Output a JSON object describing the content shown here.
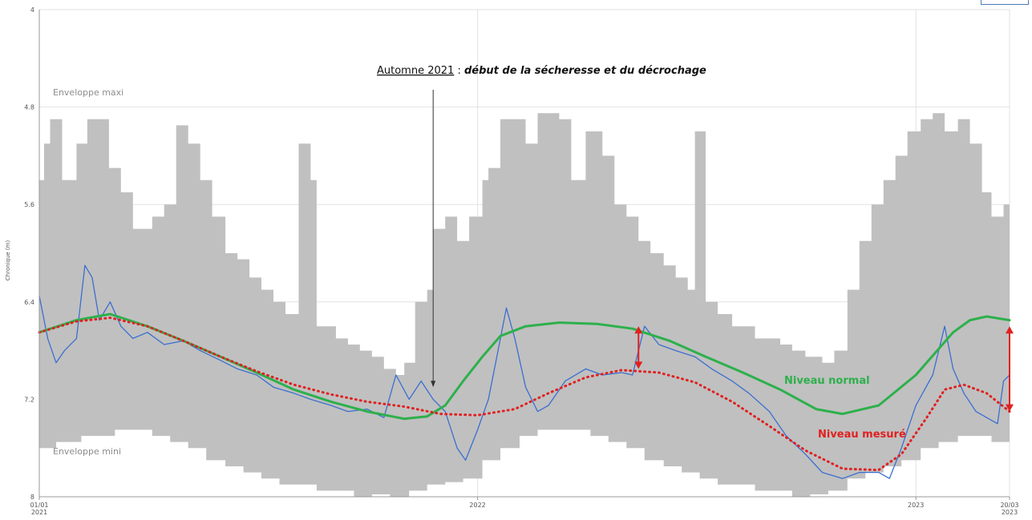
{
  "chart_data": {
    "type": "area",
    "ylabel": "Chronique (m)",
    "ylim": [
      8,
      4
    ],
    "y_inverted": true,
    "yticks": [
      4,
      4.8,
      5.6,
      6.4,
      7.2,
      8
    ],
    "ytick_labels": [
      "4",
      "4.8",
      "5.6",
      "6.4",
      "7.2",
      "8"
    ],
    "xlim": [
      "2021-01-01",
      "2023-03-20"
    ],
    "xtick_labels": [
      {
        "date": "2021-01-01",
        "lines": [
          "01/01",
          "2021"
        ]
      },
      {
        "date": "2022-01-01",
        "lines": [
          "2022"
        ]
      },
      {
        "date": "2023-01-01",
        "lines": [
          "2023"
        ]
      },
      {
        "date": "2023-03-20",
        "lines": [
          "20/03",
          "2023"
        ]
      }
    ],
    "grid": true,
    "envelope": {
      "color": "#c0c0c0",
      "max_label": "Enveloppe maxi",
      "min_label": "Enveloppe mini",
      "upper": [
        [
          "2021-01-01",
          5.4
        ],
        [
          "2021-01-05",
          5.1
        ],
        [
          "2021-01-10",
          4.9
        ],
        [
          "2021-01-15",
          4.9
        ],
        [
          "2021-01-20",
          5.4
        ],
        [
          "2021-02-01",
          5.1
        ],
        [
          "2021-02-10",
          4.9
        ],
        [
          "2021-02-20",
          4.9
        ],
        [
          "2021-02-28",
          5.3
        ],
        [
          "2021-03-10",
          5.5
        ],
        [
          "2021-03-20",
          5.8
        ],
        [
          "2021-04-01",
          5.8
        ],
        [
          "2021-04-05",
          5.7
        ],
        [
          "2021-04-15",
          5.6
        ],
        [
          "2021-04-20",
          5.6
        ],
        [
          "2021-04-25",
          4.95
        ],
        [
          "2021-05-05",
          5.1
        ],
        [
          "2021-05-15",
          5.4
        ],
        [
          "2021-05-25",
          5.7
        ],
        [
          "2021-06-05",
          6.0
        ],
        [
          "2021-06-15",
          6.05
        ],
        [
          "2021-06-25",
          6.2
        ],
        [
          "2021-07-05",
          6.3
        ],
        [
          "2021-07-15",
          6.4
        ],
        [
          "2021-07-25",
          6.5
        ],
        [
          "2021-08-01",
          6.5
        ],
        [
          "2021-08-05",
          5.1
        ],
        [
          "2021-08-15",
          5.4
        ],
        [
          "2021-08-20",
          6.6
        ],
        [
          "2021-09-05",
          6.7
        ],
        [
          "2021-09-15",
          6.75
        ],
        [
          "2021-09-25",
          6.8
        ],
        [
          "2021-10-05",
          6.85
        ],
        [
          "2021-10-15",
          6.95
        ],
        [
          "2021-10-25",
          7.0
        ],
        [
          "2021-11-01",
          6.9
        ],
        [
          "2021-11-10",
          6.4
        ],
        [
          "2021-11-20",
          6.3
        ],
        [
          "2021-11-25",
          5.8
        ],
        [
          "2021-12-05",
          5.7
        ],
        [
          "2021-12-15",
          5.9
        ],
        [
          "2021-12-25",
          5.7
        ],
        [
          "2022-01-05",
          5.4
        ],
        [
          "2022-01-10",
          5.3
        ],
        [
          "2022-01-20",
          4.9
        ],
        [
          "2022-01-30",
          4.9
        ],
        [
          "2022-02-10",
          5.1
        ],
        [
          "2022-02-20",
          4.85
        ],
        [
          "2022-03-01",
          4.85
        ],
        [
          "2022-03-10",
          4.9
        ],
        [
          "2022-03-20",
          5.4
        ],
        [
          "2022-04-01",
          5.0
        ],
        [
          "2022-04-15",
          5.2
        ],
        [
          "2022-04-25",
          5.6
        ],
        [
          "2022-05-05",
          5.7
        ],
        [
          "2022-05-15",
          5.9
        ],
        [
          "2022-05-25",
          6.0
        ],
        [
          "2022-06-05",
          6.1
        ],
        [
          "2022-06-15",
          6.2
        ],
        [
          "2022-06-25",
          6.3
        ],
        [
          "2022-07-01",
          5.0
        ],
        [
          "2022-07-10",
          6.4
        ],
        [
          "2022-07-20",
          6.5
        ],
        [
          "2022-08-01",
          6.6
        ],
        [
          "2022-08-10",
          6.6
        ],
        [
          "2022-08-20",
          6.7
        ],
        [
          "2022-08-30",
          6.7
        ],
        [
          "2022-09-10",
          6.75
        ],
        [
          "2022-09-20",
          6.8
        ],
        [
          "2022-10-01",
          6.85
        ],
        [
          "2022-10-15",
          6.9
        ],
        [
          "2022-10-25",
          6.8
        ],
        [
          "2022-11-05",
          6.3
        ],
        [
          "2022-11-15",
          5.9
        ],
        [
          "2022-11-25",
          5.6
        ],
        [
          "2022-12-05",
          5.4
        ],
        [
          "2022-12-15",
          5.2
        ],
        [
          "2022-12-25",
          5.0
        ],
        [
          "2023-01-05",
          4.9
        ],
        [
          "2023-01-15",
          4.85
        ],
        [
          "2023-01-25",
          5.0
        ],
        [
          "2023-02-05",
          4.9
        ],
        [
          "2023-02-15",
          5.1
        ],
        [
          "2023-02-25",
          5.5
        ],
        [
          "2023-03-05",
          5.7
        ],
        [
          "2023-03-15",
          5.6
        ],
        [
          "2023-03-20",
          4.9
        ]
      ],
      "lower": [
        [
          "2021-01-01",
          7.6
        ],
        [
          "2021-01-15",
          7.55
        ],
        [
          "2021-02-05",
          7.5
        ],
        [
          "2021-03-05",
          7.45
        ],
        [
          "2021-04-05",
          7.5
        ],
        [
          "2021-04-20",
          7.55
        ],
        [
          "2021-05-05",
          7.6
        ],
        [
          "2021-05-20",
          7.7
        ],
        [
          "2021-06-05",
          7.75
        ],
        [
          "2021-06-20",
          7.8
        ],
        [
          "2021-07-05",
          7.85
        ],
        [
          "2021-07-20",
          7.9
        ],
        [
          "2021-08-05",
          7.9
        ],
        [
          "2021-08-20",
          7.95
        ],
        [
          "2021-09-05",
          7.95
        ],
        [
          "2021-09-20",
          8.0
        ],
        [
          "2021-10-05",
          7.98
        ],
        [
          "2021-10-20",
          8.0
        ],
        [
          "2021-11-05",
          7.95
        ],
        [
          "2021-11-20",
          7.9
        ],
        [
          "2021-12-05",
          7.88
        ],
        [
          "2021-12-20",
          7.85
        ],
        [
          "2022-01-05",
          7.7
        ],
        [
          "2022-01-20",
          7.6
        ],
        [
          "2022-02-05",
          7.5
        ],
        [
          "2022-02-20",
          7.45
        ],
        [
          "2022-03-05",
          7.45
        ],
        [
          "2022-03-20",
          7.45
        ],
        [
          "2022-04-05",
          7.5
        ],
        [
          "2022-04-20",
          7.55
        ],
        [
          "2022-05-05",
          7.6
        ],
        [
          "2022-05-20",
          7.7
        ],
        [
          "2022-06-05",
          7.75
        ],
        [
          "2022-06-20",
          7.8
        ],
        [
          "2022-07-05",
          7.85
        ],
        [
          "2022-07-20",
          7.9
        ],
        [
          "2022-08-05",
          7.9
        ],
        [
          "2022-08-20",
          7.95
        ],
        [
          "2022-09-05",
          7.95
        ],
        [
          "2022-09-20",
          8.0
        ],
        [
          "2022-10-05",
          7.98
        ],
        [
          "2022-10-20",
          7.95
        ],
        [
          "2022-11-05",
          7.85
        ],
        [
          "2022-11-20",
          7.8
        ],
        [
          "2022-12-05",
          7.75
        ],
        [
          "2022-12-20",
          7.7
        ],
        [
          "2023-01-05",
          7.6
        ],
        [
          "2023-01-20",
          7.55
        ],
        [
          "2023-02-05",
          7.5
        ],
        [
          "2023-02-20",
          7.5
        ],
        [
          "2023-03-05",
          7.55
        ],
        [
          "2023-03-20",
          7.55
        ]
      ]
    },
    "series": [
      {
        "name": "Niveau normal",
        "color": "#2db04b",
        "style": "solid",
        "points": [
          [
            "2021-01-01",
            6.65
          ],
          [
            "2021-02-01",
            6.55
          ],
          [
            "2021-03-01",
            6.5
          ],
          [
            "2021-04-01",
            6.6
          ],
          [
            "2021-05-01",
            6.72
          ],
          [
            "2021-06-01",
            6.85
          ],
          [
            "2021-07-01",
            6.98
          ],
          [
            "2021-08-01",
            7.12
          ],
          [
            "2021-09-01",
            7.22
          ],
          [
            "2021-10-01",
            7.3
          ],
          [
            "2021-11-01",
            7.36
          ],
          [
            "2021-11-20",
            7.34
          ],
          [
            "2021-12-05",
            7.25
          ],
          [
            "2021-12-20",
            7.05
          ],
          [
            "2022-01-05",
            6.85
          ],
          [
            "2022-01-20",
            6.68
          ],
          [
            "2022-02-10",
            6.6
          ],
          [
            "2022-03-10",
            6.57
          ],
          [
            "2022-04-10",
            6.58
          ],
          [
            "2022-05-10",
            6.62
          ],
          [
            "2022-06-10",
            6.72
          ],
          [
            "2022-07-10",
            6.85
          ],
          [
            "2022-08-10",
            6.98
          ],
          [
            "2022-09-10",
            7.12
          ],
          [
            "2022-10-10",
            7.28
          ],
          [
            "2022-11-01",
            7.32
          ],
          [
            "2022-12-01",
            7.25
          ],
          [
            "2023-01-01",
            7.0
          ],
          [
            "2023-02-01",
            6.65
          ],
          [
            "2023-02-15",
            6.55
          ],
          [
            "2023-03-01",
            6.52
          ],
          [
            "2023-03-20",
            6.55
          ]
        ]
      },
      {
        "name": "Niveau mesuré",
        "color": "#e02020",
        "style": "dotted",
        "points": [
          [
            "2021-01-01",
            6.65
          ],
          [
            "2021-02-01",
            6.56
          ],
          [
            "2021-03-01",
            6.53
          ],
          [
            "2021-04-01",
            6.6
          ],
          [
            "2021-05-01",
            6.72
          ],
          [
            "2021-06-01",
            6.85
          ],
          [
            "2021-07-01",
            6.97
          ],
          [
            "2021-08-01",
            7.08
          ],
          [
            "2021-09-01",
            7.16
          ],
          [
            "2021-10-01",
            7.22
          ],
          [
            "2021-11-01",
            7.26
          ],
          [
            "2021-12-01",
            7.32
          ],
          [
            "2022-01-01",
            7.33
          ],
          [
            "2022-02-01",
            7.28
          ],
          [
            "2022-03-01",
            7.15
          ],
          [
            "2022-04-01",
            7.02
          ],
          [
            "2022-05-01",
            6.96
          ],
          [
            "2022-06-01",
            6.98
          ],
          [
            "2022-07-01",
            7.06
          ],
          [
            "2022-08-01",
            7.22
          ],
          [
            "2022-09-01",
            7.42
          ],
          [
            "2022-10-01",
            7.62
          ],
          [
            "2022-11-01",
            7.77
          ],
          [
            "2022-12-01",
            7.78
          ],
          [
            "2022-12-20",
            7.65
          ],
          [
            "2023-01-10",
            7.35
          ],
          [
            "2023-01-25",
            7.12
          ],
          [
            "2023-02-10",
            7.08
          ],
          [
            "2023-03-01",
            7.15
          ],
          [
            "2023-03-20",
            7.3
          ]
        ]
      },
      {
        "name": "",
        "color": "#3a6fd0",
        "style": "solid",
        "points": [
          [
            "2021-01-01",
            6.35
          ],
          [
            "2021-01-08",
            6.7
          ],
          [
            "2021-01-15",
            6.9
          ],
          [
            "2021-01-22",
            6.8
          ],
          [
            "2021-02-01",
            6.7
          ],
          [
            "2021-02-08",
            6.1
          ],
          [
            "2021-02-14",
            6.2
          ],
          [
            "2021-02-20",
            6.55
          ],
          [
            "2021-03-01",
            6.4
          ],
          [
            "2021-03-10",
            6.6
          ],
          [
            "2021-03-20",
            6.7
          ],
          [
            "2021-04-01",
            6.65
          ],
          [
            "2021-04-15",
            6.75
          ],
          [
            "2021-05-01",
            6.72
          ],
          [
            "2021-05-15",
            6.8
          ],
          [
            "2021-06-01",
            6.88
          ],
          [
            "2021-06-15",
            6.95
          ],
          [
            "2021-07-01",
            7.0
          ],
          [
            "2021-07-15",
            7.1
          ],
          [
            "2021-08-01",
            7.15
          ],
          [
            "2021-08-15",
            7.2
          ],
          [
            "2021-09-01",
            7.25
          ],
          [
            "2021-09-15",
            7.3
          ],
          [
            "2021-10-01",
            7.28
          ],
          [
            "2021-10-15",
            7.35
          ],
          [
            "2021-10-25",
            7.0
          ],
          [
            "2021-11-05",
            7.2
          ],
          [
            "2021-11-15",
            7.05
          ],
          [
            "2021-11-25",
            7.2
          ],
          [
            "2021-12-05",
            7.3
          ],
          [
            "2021-12-15",
            7.6
          ],
          [
            "2021-12-22",
            7.7
          ],
          [
            "2022-01-01",
            7.45
          ],
          [
            "2022-01-10",
            7.2
          ],
          [
            "2022-01-18",
            6.8
          ],
          [
            "2022-01-25",
            6.45
          ],
          [
            "2022-02-01",
            6.7
          ],
          [
            "2022-02-10",
            7.1
          ],
          [
            "2022-02-20",
            7.3
          ],
          [
            "2022-03-01",
            7.25
          ],
          [
            "2022-03-15",
            7.05
          ],
          [
            "2022-04-01",
            6.95
          ],
          [
            "2022-04-15",
            7.0
          ],
          [
            "2022-05-01",
            6.98
          ],
          [
            "2022-05-10",
            7.0
          ],
          [
            "2022-05-20",
            6.6
          ],
          [
            "2022-06-01",
            6.75
          ],
          [
            "2022-06-15",
            6.8
          ],
          [
            "2022-07-01",
            6.85
          ],
          [
            "2022-07-15",
            6.95
          ],
          [
            "2022-08-01",
            7.05
          ],
          [
            "2022-08-15",
            7.15
          ],
          [
            "2022-09-01",
            7.3
          ],
          [
            "2022-09-15",
            7.5
          ],
          [
            "2022-10-01",
            7.65
          ],
          [
            "2022-10-15",
            7.8
          ],
          [
            "2022-11-01",
            7.85
          ],
          [
            "2022-11-15",
            7.8
          ],
          [
            "2022-12-01",
            7.8
          ],
          [
            "2022-12-10",
            7.85
          ],
          [
            "2022-12-20",
            7.6
          ],
          [
            "2023-01-01",
            7.25
          ],
          [
            "2023-01-15",
            7.0
          ],
          [
            "2023-01-25",
            6.6
          ],
          [
            "2023-02-01",
            6.95
          ],
          [
            "2023-02-10",
            7.15
          ],
          [
            "2023-02-20",
            7.3
          ],
          [
            "2023-03-01",
            7.35
          ],
          [
            "2023-03-10",
            7.4
          ],
          [
            "2023-03-15",
            7.05
          ],
          [
            "2023-03-20",
            7.0
          ]
        ]
      }
    ],
    "annotations": {
      "arrow_text_underlined": "Automne 2021",
      "arrow_text_sep": " : ",
      "arrow_text_bold": "début de la sécheresse et du décrochage",
      "arrow_target": [
        "2021-11-25",
        7.1
      ],
      "double_arrows": [
        {
          "date": "2022-05-15",
          "from": 6.6,
          "to": 6.95
        },
        {
          "date": "2023-03-20",
          "from": 6.6,
          "to": 7.3
        }
      ]
    }
  }
}
